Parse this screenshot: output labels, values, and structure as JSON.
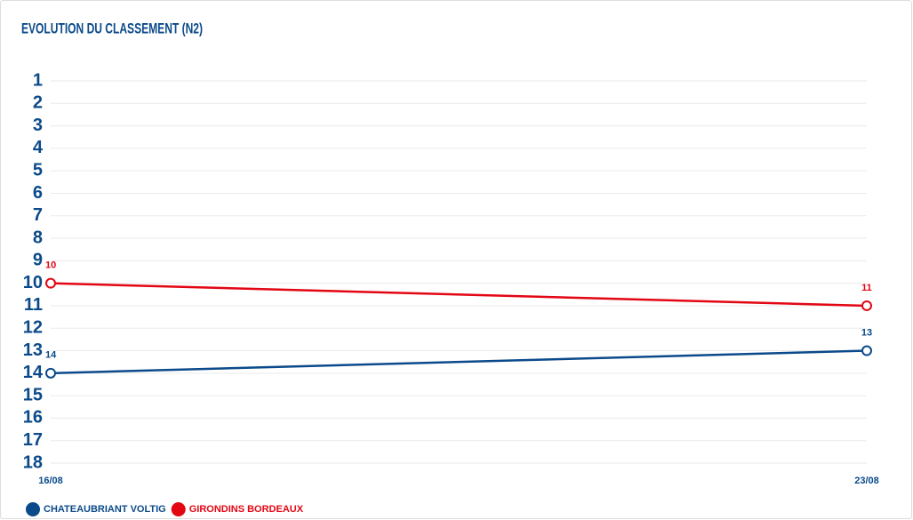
{
  "chart_data": {
    "type": "line",
    "title": "EVOLUTION DU CLASSEMENT (N2)",
    "x": [
      "16/08",
      "23/08"
    ],
    "series": [
      {
        "name": "CHATEAUBRIANT VOLTIG",
        "color": "#0b4a8a",
        "values": [
          14,
          13
        ]
      },
      {
        "name": "GIRONDINS BORDEAUX",
        "color": "#e30613",
        "values": [
          10,
          11
        ]
      }
    ],
    "ylim": [
      1,
      18
    ],
    "y_inverted": true,
    "yticks": [
      1,
      2,
      3,
      4,
      5,
      6,
      7,
      8,
      9,
      10,
      11,
      12,
      13,
      14,
      15,
      16,
      17,
      18
    ],
    "grid": true,
    "legend": "bottom-left"
  }
}
